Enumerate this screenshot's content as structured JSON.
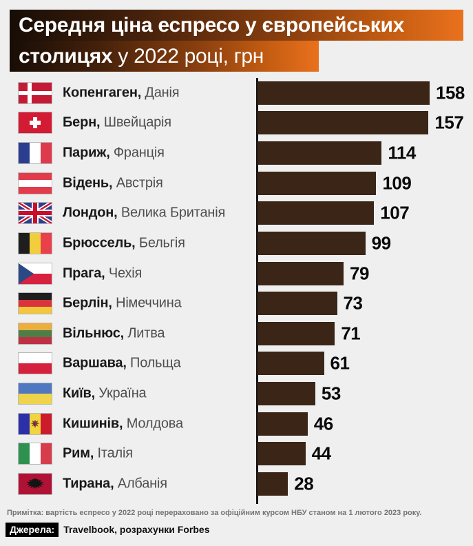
{
  "title": {
    "line1_bold": "Середня ціна еспресо у європейських",
    "line2_bold": "столицях",
    "line2_regular": " у 2022 році, грн"
  },
  "chart_data": {
    "type": "bar",
    "orientation": "horizontal",
    "title": "Середня ціна еспресо у європейських столицях у 2022 році, грн",
    "unit": "грн",
    "xlim": [
      0,
      158
    ],
    "grid": false,
    "value_labels": "end-of-bar",
    "rows": [
      {
        "city": "Копенгаген",
        "country": "Данія",
        "flag": "denmark",
        "value": 158
      },
      {
        "city": "Берн",
        "country": "Швейцарія",
        "flag": "switzerland",
        "value": 157
      },
      {
        "city": "Париж",
        "country": "Франція",
        "flag": "france",
        "value": 114
      },
      {
        "city": "Відень",
        "country": "Австрія",
        "flag": "austria",
        "value": 109
      },
      {
        "city": "Лондон",
        "country": "Велика Британія",
        "flag": "uk",
        "value": 107
      },
      {
        "city": "Брюссель",
        "country": "Бельгія",
        "flag": "belgium",
        "value": 99
      },
      {
        "city": "Прага",
        "country": "Чехія",
        "flag": "czechia",
        "value": 79
      },
      {
        "city": "Берлін",
        "country": "Німеччина",
        "flag": "germany",
        "value": 73
      },
      {
        "city": "Вільнюс",
        "country": "Литва",
        "flag": "lithuania",
        "value": 71
      },
      {
        "city": "Варшава",
        "country": "Польща",
        "flag": "poland",
        "value": 61
      },
      {
        "city": "Київ",
        "country": "Україна",
        "flag": "ukraine",
        "value": 53
      },
      {
        "city": "Кишинів",
        "country": "Молдова",
        "flag": "moldova",
        "value": 46
      },
      {
        "city": "Рим",
        "country": "Італія",
        "flag": "italy",
        "value": 44
      },
      {
        "city": "Тирана",
        "country": "Албанія",
        "flag": "albania",
        "value": 28
      }
    ]
  },
  "colors": {
    "page_background": "#EFEFF0",
    "bar": "#3A2517",
    "axis": "#161616",
    "title_gradient_start": "#170D06",
    "title_gradient_end": "#E9711D",
    "city_text": "#191919",
    "country_text": "#4E4E4E",
    "note_text": "#757575"
  },
  "footer": {
    "note": "Примітка: вартість еспресо у 2022 році перераховано за офіційним курсом НБУ станом на 1 лютого 2023 року.",
    "sources_label": "Джерела:",
    "sources": "Travelbook, розрахунки Forbes"
  }
}
